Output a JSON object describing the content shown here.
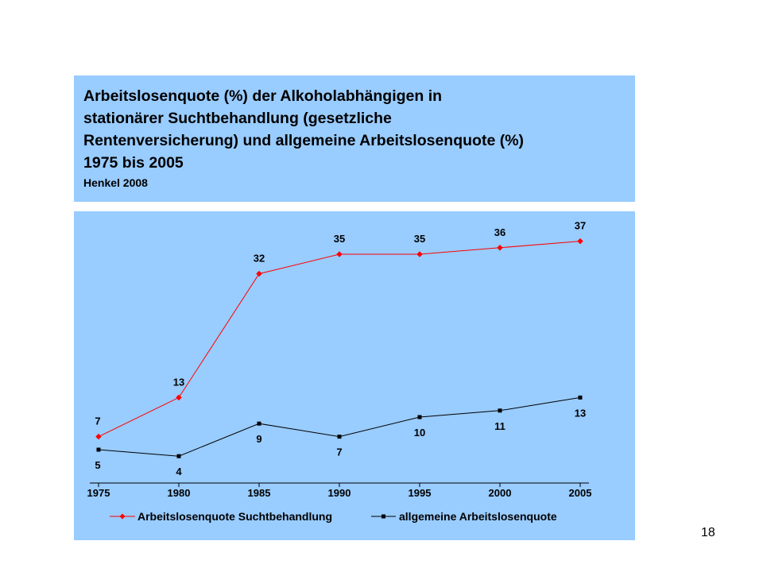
{
  "slide": {
    "title": "Arbeitslosenquote (%) der Alkoholabhängigen in\nstationärer Suchtbehandlung (gesetzliche\nRentenversicherung) und allgemeine Arbeitslosenquote (%)\n1975 bis 2005",
    "source": "Henkel 2008",
    "page_number": "18"
  },
  "chart_data": {
    "type": "line",
    "x": [
      "1975",
      "1980",
      "1985",
      "1990",
      "1995",
      "2000",
      "2005"
    ],
    "series": [
      {
        "name": "Arbeitslosenquote Suchtbehandlung",
        "values": [
          7,
          13,
          32,
          35,
          35,
          36,
          37
        ],
        "color": "#ff0000",
        "marker": "diamond"
      },
      {
        "name": "allgemeine Arbeitslosenquote",
        "values": [
          5,
          4,
          9,
          7,
          10,
          11,
          13
        ],
        "color": "#000000",
        "marker": "square"
      }
    ],
    "ylim": [
      0,
      40
    ],
    "grid": false,
    "legend": "bottom",
    "background": "#99ccff"
  }
}
